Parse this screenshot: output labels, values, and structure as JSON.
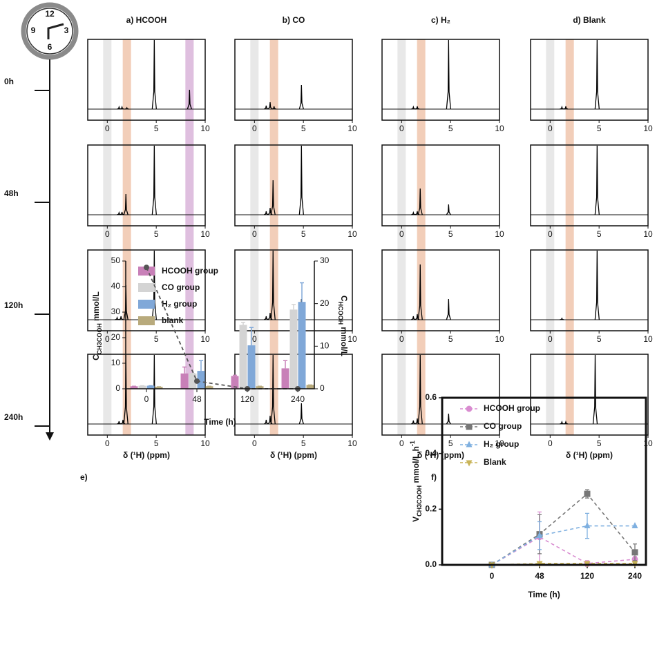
{
  "clock": {
    "labels": [
      12,
      3,
      6,
      9
    ]
  },
  "timeline": {
    "labels": [
      "0h",
      "48h",
      "120h",
      "240h"
    ]
  },
  "chart_data": [
    {
      "type": "spectra",
      "xlim": [
        -2,
        10
      ],
      "xticks": [
        0,
        5,
        10
      ],
      "xlabel": "δ (¹H) (ppm)",
      "columns": [
        {
          "title": "a) HCOOH",
          "bands": [
            {
              "ppm": 0,
              "color": "#e6e6e6"
            },
            {
              "ppm": 2,
              "color": "#f1c9b1"
            },
            {
              "ppm": 8.4,
              "color": "#dcb8dc"
            }
          ],
          "spectra": [
            {
              "peaks": [
                1.2,
                1.5,
                2.0,
                4.8,
                8.4
              ],
              "heights": [
                0.03,
                0.03,
                0.02,
                1,
                0.28
              ]
            },
            {
              "peaks": [
                1.2,
                1.5,
                1.9,
                4.8
              ],
              "heights": [
                0.03,
                0.04,
                0.3,
                1
              ]
            },
            {
              "peaks": [
                1.0,
                1.4,
                1.9,
                4.8
              ],
              "heights": [
                0.03,
                0.05,
                0.5,
                1
              ]
            },
            {
              "peaks": [
                1.2,
                1.6,
                1.9,
                4.8
              ],
              "heights": [
                0.04,
                0.06,
                1,
                1
              ]
            }
          ]
        },
        {
          "title": "b) CO",
          "bands": [
            {
              "ppm": 0,
              "color": "#e6e6e6"
            },
            {
              "ppm": 2,
              "color": "#f1c9b1"
            }
          ],
          "spectra": [
            {
              "peaks": [
                1.2,
                1.6,
                2.0,
                4.8
              ],
              "heights": [
                0.05,
                0.1,
                0.04,
                0.35
              ]
            },
            {
              "peaks": [
                1.2,
                1.6,
                1.9,
                4.8
              ],
              "heights": [
                0.05,
                0.1,
                0.5,
                1
              ]
            },
            {
              "peaks": [
                1.2,
                1.6,
                1.9,
                4.8
              ],
              "heights": [
                0.05,
                0.1,
                1,
                0.3
              ]
            },
            {
              "peaks": [
                1.2,
                1.6,
                1.9,
                4.8
              ],
              "heights": [
                0.06,
                0.12,
                1,
                0.3
              ]
            }
          ]
        },
        {
          "title": "c) H₂",
          "bands": [
            {
              "ppm": 0,
              "color": "#e6e6e6"
            },
            {
              "ppm": 2,
              "color": "#f1c9b1"
            }
          ],
          "spectra": [
            {
              "peaks": [
                1.2,
                1.6,
                4.8
              ],
              "heights": [
                0.03,
                0.04,
                1
              ]
            },
            {
              "peaks": [
                1.2,
                1.6,
                1.9,
                4.8
              ],
              "heights": [
                0.03,
                0.05,
                0.38,
                0.15
              ]
            },
            {
              "peaks": [
                1.2,
                1.6,
                1.9,
                4.8
              ],
              "heights": [
                0.05,
                0.08,
                0.8,
                0.3
              ]
            },
            {
              "peaks": [
                1.2,
                1.6,
                1.9,
                4.8
              ],
              "heights": [
                0.05,
                0.08,
                1,
                0.15
              ]
            }
          ]
        },
        {
          "title": "d) Blank",
          "bands": [
            {
              "ppm": 0,
              "color": "#e6e6e6"
            },
            {
              "ppm": 2,
              "color": "#f1c9b1"
            }
          ],
          "spectra": [
            {
              "peaks": [
                1.2,
                1.6,
                4.8
              ],
              "heights": [
                0.03,
                0.04,
                1
              ]
            },
            {
              "peaks": [
                4.8
              ],
              "heights": [
                1
              ]
            },
            {
              "peaks": [
                1.2,
                4.8
              ],
              "heights": [
                0.02,
                1
              ]
            },
            {
              "peaks": [
                1.2,
                1.6,
                4.6
              ],
              "heights": [
                0.03,
                0.03,
                1
              ]
            }
          ]
        }
      ]
    },
    {
      "type": "bar",
      "label": "e)",
      "xlabel": "Time (h)",
      "categories": [
        "0",
        "48",
        "120",
        "240"
      ],
      "ylabel": {
        "main": "C",
        "sub": "CH3COOH",
        "unit": " mmol/L"
      },
      "y2label": {
        "main": "C",
        "sub": "HCOOH",
        "unit": " mmol/L"
      },
      "ylim": [
        0,
        50
      ],
      "yticks": [
        0,
        10,
        20,
        30,
        40,
        50
      ],
      "y2lim": [
        0,
        30
      ],
      "y2ticks": [
        0,
        10,
        20,
        30
      ],
      "series": [
        {
          "name": "HCOOH group",
          "color": "#c880b8",
          "values": [
            1,
            6,
            5,
            8
          ],
          "errors": [
            0,
            2.5,
            0.3,
            3
          ]
        },
        {
          "name": "CO group",
          "color": "#d4d4d4",
          "values": [
            1.2,
            6,
            25,
            31
          ],
          "errors": [
            0,
            0,
            1,
            2
          ]
        },
        {
          "name": "H₂ group",
          "color": "#80a8d8",
          "values": [
            1.2,
            7,
            17,
            34
          ],
          "errors": [
            0,
            4,
            7,
            7.5
          ]
        },
        {
          "name": "blank",
          "color": "#b8aa7c",
          "values": [
            0.8,
            1,
            1,
            1.5
          ],
          "errors": [
            0,
            0,
            0,
            0
          ]
        }
      ],
      "line": {
        "axis": "y2",
        "color": "#555555",
        "values": [
          28.5,
          1.8,
          0,
          0
        ]
      }
    },
    {
      "type": "line",
      "label": "f)",
      "xlabel": "Time (h)",
      "categories": [
        "0",
        "48",
        "120",
        "240"
      ],
      "ylabel": {
        "main": "V",
        "sub": "CH3COOH",
        "unit": " mmol/L.h",
        "sup": "-1"
      },
      "ylim": [
        0,
        0.6
      ],
      "yticks": [
        {
          "value": 0,
          "label": "0.0"
        },
        0.2,
        0.4,
        0.6
      ],
      "series": [
        {
          "name": "HCOOH group",
          "color": "#d98cd0",
          "marker": "circle",
          "values": [
            0,
            0.1,
            0.005,
            0.02
          ],
          "errors": [
            0,
            0.09,
            0.01,
            0.01
          ]
        },
        {
          "name": "CO group",
          "color": "#777777",
          "marker": "square",
          "values": [
            0,
            0.11,
            0.255,
            0.045
          ],
          "errors": [
            0,
            0.07,
            0.015,
            0.03
          ]
        },
        {
          "name": "H₂ group",
          "color": "#7fb0e0",
          "marker": "triangle",
          "values": [
            0,
            0.105,
            0.14,
            0.14
          ],
          "errors": [
            0,
            0.05,
            0.045,
            0
          ]
        },
        {
          "name": "Blank",
          "color": "#c9b458",
          "marker": "triangle-down",
          "values": [
            0,
            0.005,
            0.005,
            0.005
          ],
          "errors": [
            0,
            0,
            0,
            0
          ]
        }
      ]
    }
  ]
}
